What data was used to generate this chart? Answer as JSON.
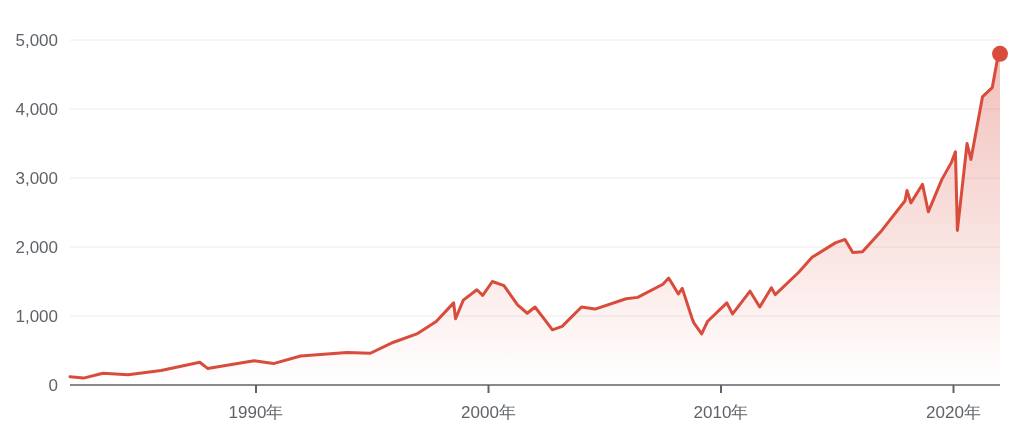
{
  "chart_data": {
    "type": "area",
    "xlim": [
      "1982-01",
      "2022-01"
    ],
    "ylim": [
      0,
      5000
    ],
    "xticks": [
      {
        "value": "1990-01",
        "label": "1990年"
      },
      {
        "value": "2000-01",
        "label": "2000年"
      },
      {
        "value": "2010-01",
        "label": "2010年"
      },
      {
        "value": "2020-01",
        "label": "2020年"
      }
    ],
    "yticks": [
      0,
      {
        "value": 1000,
        "label": "1,000"
      },
      {
        "value": 2000,
        "label": "2,000"
      },
      {
        "value": 3000,
        "label": "3,000"
      },
      {
        "value": 4000,
        "label": "4,000"
      },
      {
        "value": 5000,
        "label": "5,000"
      }
    ],
    "grid": "y",
    "series": [
      {
        "color": "#d94c3c",
        "x": [
          "1982-01",
          "1982-08",
          "1983-06",
          "1984-07",
          "1985-12",
          "1987-08",
          "1987-12",
          "1989-12",
          "1990-10",
          "1991-12",
          "1993-12",
          "1994-12",
          "1995-12",
          "1996-12",
          "1997-10",
          "1998-07",
          "1998-08",
          "1998-12",
          "1999-07",
          "1999-10",
          "2000-03",
          "2000-09",
          "2001-04",
          "2001-09",
          "2002-01",
          "2002-07",
          "2002-10",
          "2003-03",
          "2004-01",
          "2004-08",
          "2005-12",
          "2006-06",
          "2007-07",
          "2007-10",
          "2008-03",
          "2008-05",
          "2008-10",
          "2008-11",
          "2009-03",
          "2009-06",
          "2010-04",
          "2010-07",
          "2011-04",
          "2011-09",
          "2012-03",
          "2012-05",
          "2013-05",
          "2013-12",
          "2014-12",
          "2015-05",
          "2015-09",
          "2016-02",
          "2016-12",
          "2017-12",
          "2018-01",
          "2018-03",
          "2018-09",
          "2018-12",
          "2019-07",
          "2019-12",
          "2020-02",
          "2020-03",
          "2020-08",
          "2020-10",
          "2021-04",
          "2021-09",
          "2021-12",
          "2022-01"
        ],
        "values": [
          120,
          100,
          170,
          150,
          210,
          330,
          240,
          350,
          310,
          420,
          470,
          460,
          620,
          740,
          920,
          1190,
          960,
          1230,
          1380,
          1300,
          1500,
          1440,
          1160,
          1040,
          1130,
          910,
          800,
          850,
          1130,
          1100,
          1250,
          1270,
          1460,
          1550,
          1320,
          1400,
          970,
          900,
          740,
          920,
          1190,
          1030,
          1360,
          1130,
          1410,
          1310,
          1630,
          1850,
          2060,
          2110,
          1920,
          1930,
          2240,
          2670,
          2820,
          2640,
          2910,
          2510,
          2980,
          3230,
          3380,
          2240,
          3500,
          3270,
          4180,
          4310,
          4770,
          4800
        ]
      },
      {
        "type": "scatter",
        "color": "#d94c3c",
        "marker": "circle",
        "x": [
          "2022-01"
        ],
        "values": [
          4800
        ]
      }
    ]
  }
}
